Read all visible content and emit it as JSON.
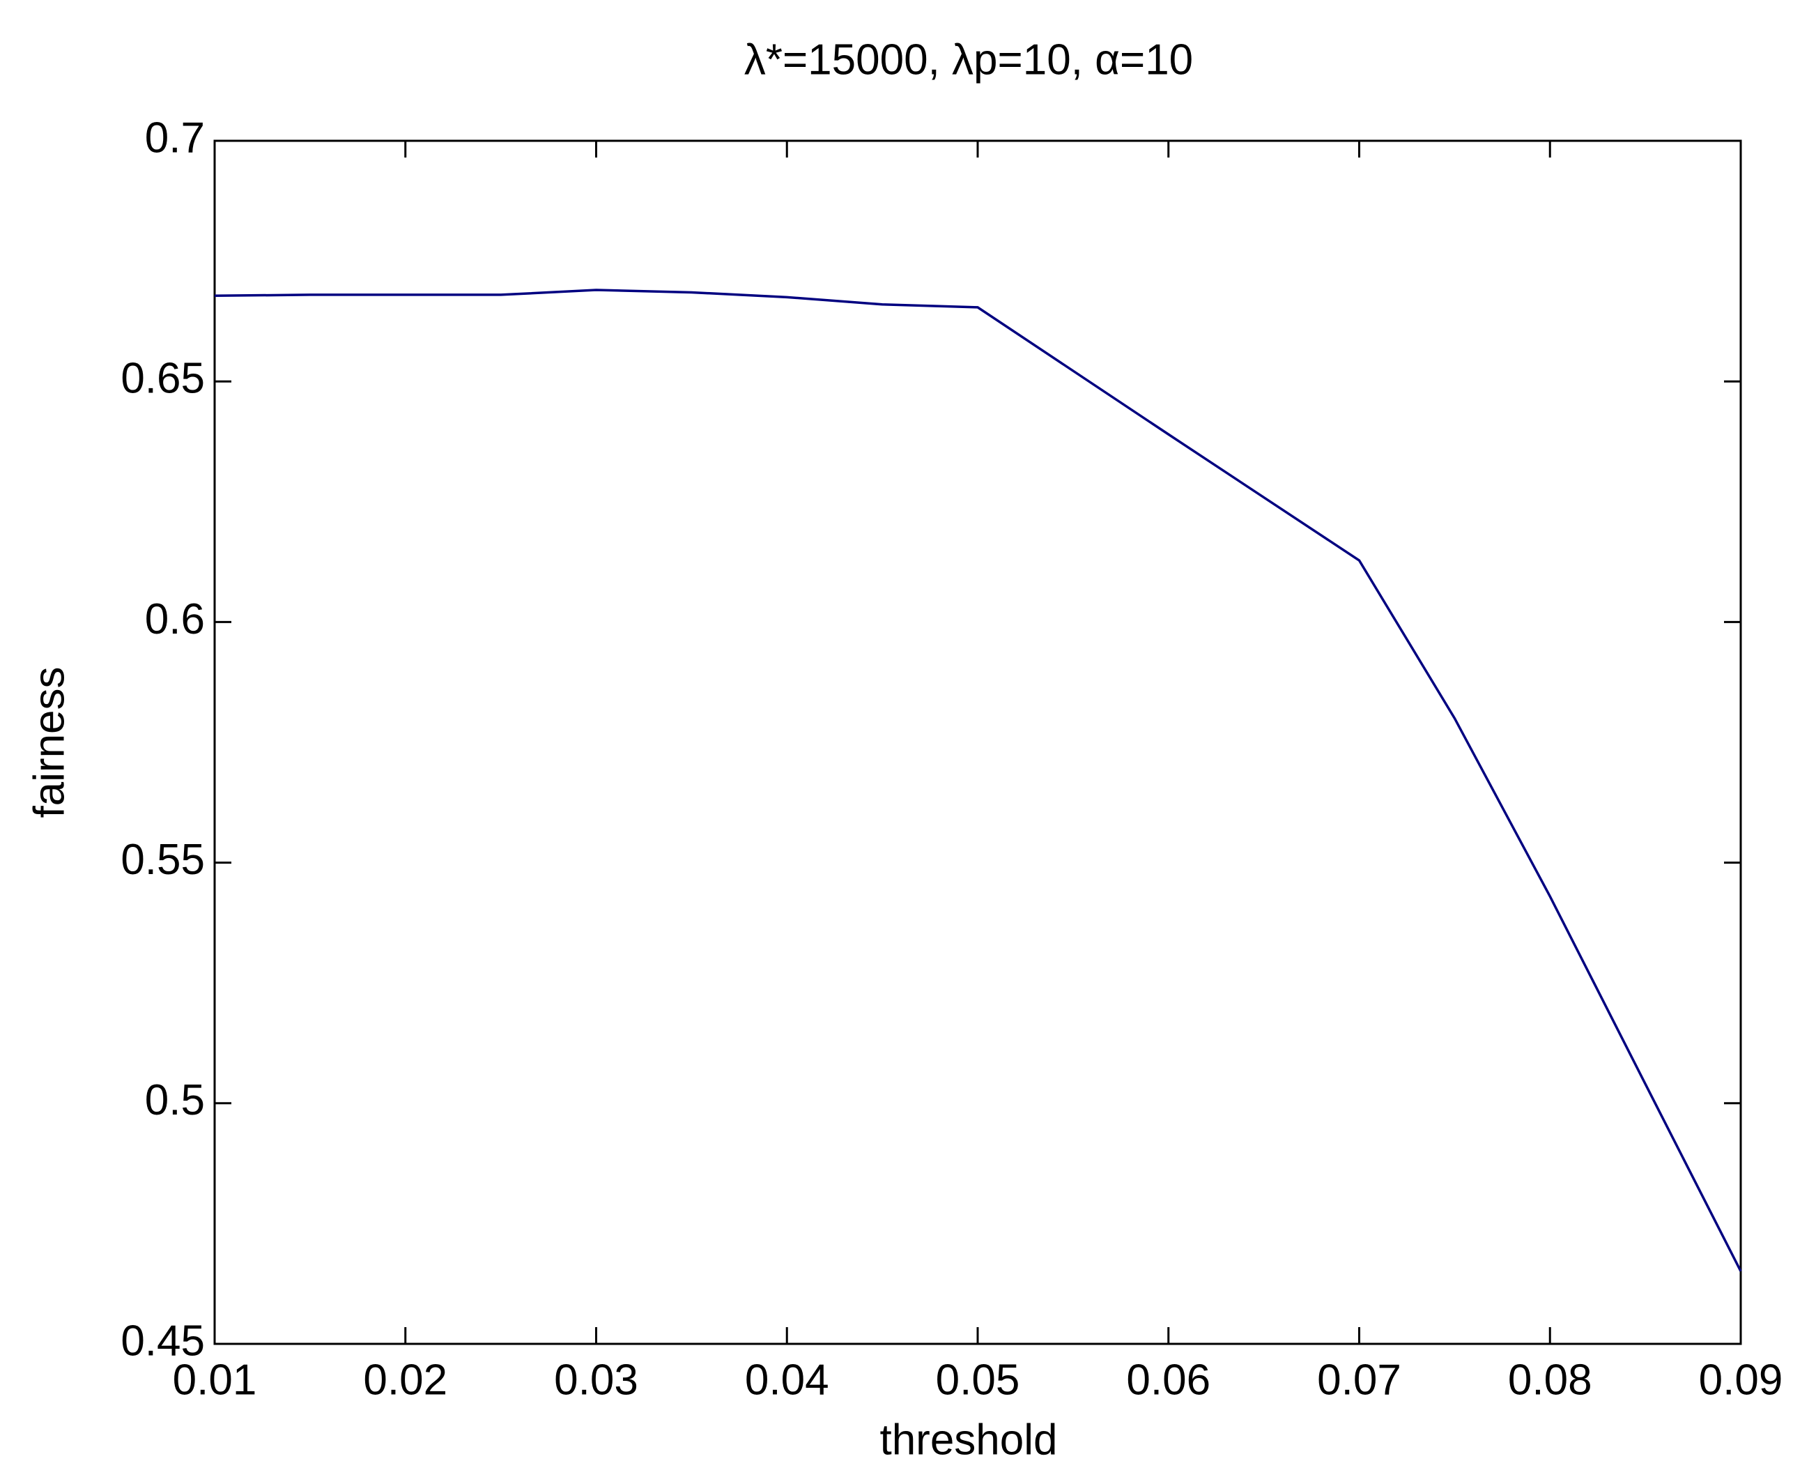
{
  "chart_data": {
    "type": "line",
    "title": "λ*=15000, λp=10, α=10",
    "xlabel": "threshold",
    "ylabel": "fairness",
    "x": [
      0.01,
      0.015,
      0.02,
      0.025,
      0.03,
      0.035,
      0.04,
      0.045,
      0.05,
      0.06,
      0.07,
      0.075,
      0.08,
      0.085,
      0.09
    ],
    "values": [
      0.6678,
      0.668,
      0.668,
      0.668,
      0.669,
      0.6685,
      0.6675,
      0.666,
      0.6654,
      0.639,
      0.6128,
      0.58,
      0.543,
      0.504,
      0.4651
    ],
    "color": "#000080",
    "xlim": [
      0.01,
      0.09
    ],
    "xticks": [
      0.01,
      0.02,
      0.03,
      0.04,
      0.05,
      0.06,
      0.07,
      0.08,
      0.09
    ],
    "ylim": [
      0.45,
      0.7
    ],
    "yticks": [
      0.45,
      0.5,
      0.55,
      0.6,
      0.65,
      0.7
    ],
    "grid": false
  }
}
